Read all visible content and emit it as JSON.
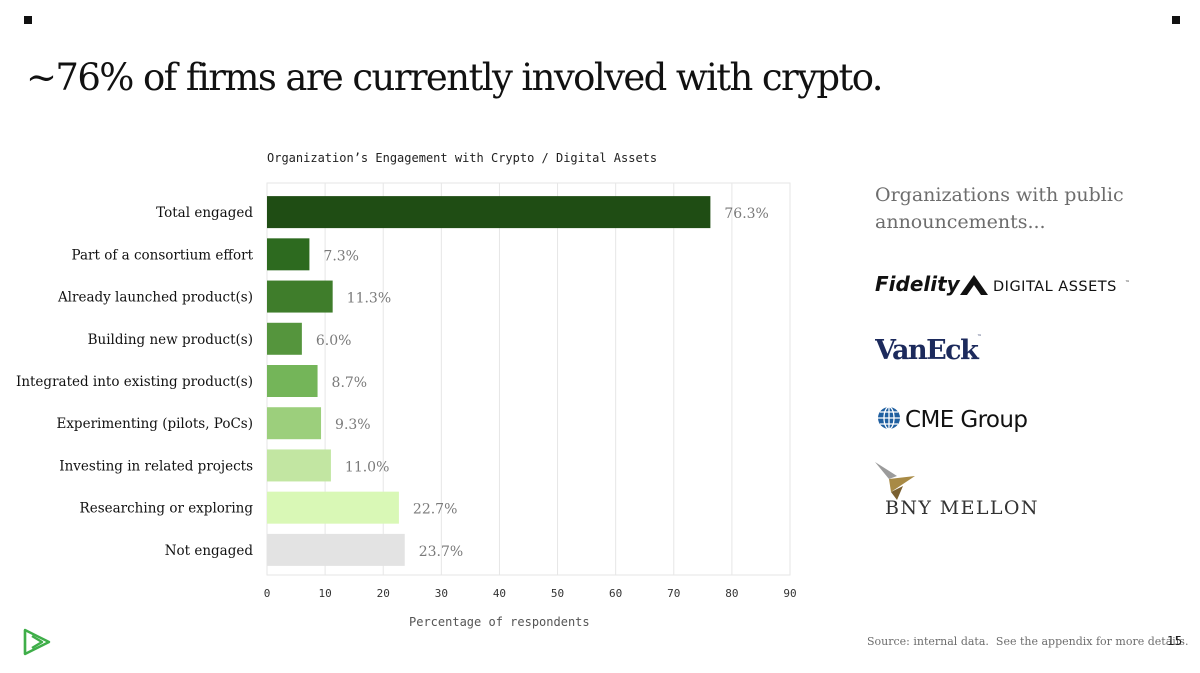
{
  "slide": {
    "title": "~76% of firms are currently involved with crypto.",
    "page_number": "15",
    "footer": {
      "source": "Source: internal data.",
      "appendix_note": "See the appendix for more details."
    }
  },
  "aside": {
    "heading": "Organizations with public announcements...",
    "logos": [
      {
        "name": "Fidelity",
        "suffix": "DIGITAL ASSETS",
        "mark": "™"
      },
      {
        "name": "VanEck",
        "mark": "™"
      },
      {
        "name": "CME Group"
      },
      {
        "name": "BNY MELLON"
      }
    ]
  },
  "chart_data": {
    "type": "bar",
    "orientation": "horizontal",
    "title": "Organization’s Engagement with Crypto / Digital Assets",
    "xlabel": "Percentage of respondents",
    "ylabel": "",
    "xlim": [
      0,
      90
    ],
    "xticks": [
      0,
      10,
      20,
      30,
      40,
      50,
      60,
      70,
      80,
      90
    ],
    "grid": true,
    "categories": [
      "Total engaged",
      "Part of a consortium effort",
      "Already launched product(s)",
      "Building new product(s)",
      "Integrated into existing product(s)",
      "Experimenting (pilots, PoCs)",
      "Investing in related projects",
      "Researching or exploring",
      "Not engaged"
    ],
    "values": [
      76.3,
      7.3,
      11.3,
      6.0,
      8.7,
      9.3,
      11.0,
      22.7,
      23.7
    ],
    "value_labels": [
      "76.3%",
      "7.3%",
      "11.3%",
      "6.0%",
      "8.7%",
      "9.3%",
      "11.0%",
      "22.7%",
      "23.7%"
    ],
    "colors": [
      "#1f4d14",
      "#2d6a1f",
      "#3f7d2b",
      "#55953d",
      "#74b559",
      "#9ccf7c",
      "#c2e6a2",
      "#d9f8b6",
      "#e3e3e3"
    ]
  },
  "colors": {
    "text": "#111111",
    "muted": "#6d6d6d",
    "brand_green": "#3fae49",
    "grid": "#e6e6e6"
  }
}
